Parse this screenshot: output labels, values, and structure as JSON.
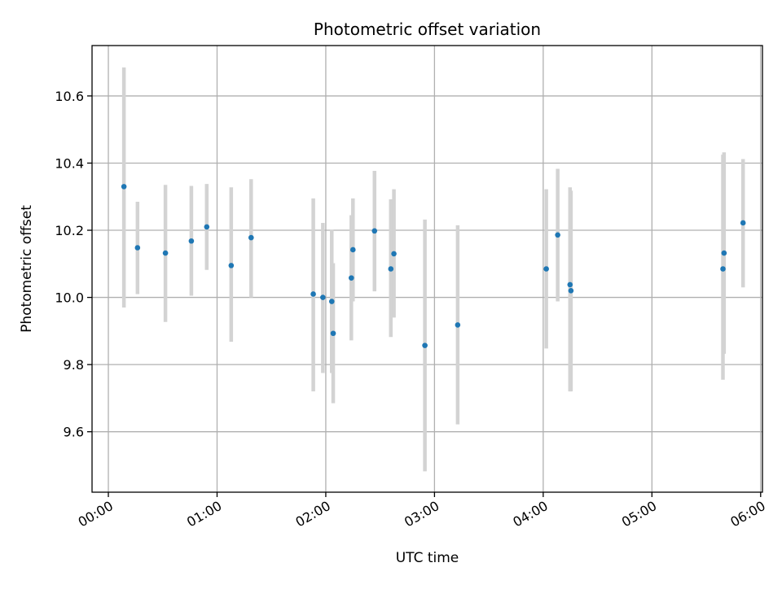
{
  "chart_data": {
    "type": "scatter",
    "title": "Photometric offset variation",
    "xlabel": "UTC time",
    "ylabel": "Photometric offset",
    "x_unit": "minutes (UTC)",
    "xlim": [
      -9,
      361
    ],
    "ylim": [
      9.42,
      10.75
    ],
    "x_ticks": [
      {
        "value": 0,
        "label": "00:00"
      },
      {
        "value": 60,
        "label": "01:00"
      },
      {
        "value": 120,
        "label": "02:00"
      },
      {
        "value": 180,
        "label": "03:00"
      },
      {
        "value": 240,
        "label": "04:00"
      },
      {
        "value": 300,
        "label": "05:00"
      },
      {
        "value": 360,
        "label": "06:00"
      }
    ],
    "y_ticks": [
      {
        "value": 9.6,
        "label": "9.6"
      },
      {
        "value": 9.8,
        "label": "9.8"
      },
      {
        "value": 10.0,
        "label": "10.0"
      },
      {
        "value": 10.2,
        "label": "10.2"
      },
      {
        "value": 10.4,
        "label": "10.4"
      },
      {
        "value": 10.6,
        "label": "10.6"
      }
    ],
    "grid": true,
    "point_color": "#1f77b4",
    "errorbar_color": "#d3d3d3",
    "points": [
      {
        "x": 8.6,
        "y": 10.33,
        "low": 9.97,
        "high": 10.685
      },
      {
        "x": 16.1,
        "y": 10.148,
        "low": 10.01,
        "high": 10.285
      },
      {
        "x": 31.5,
        "y": 10.132,
        "low": 9.927,
        "high": 10.335
      },
      {
        "x": 45.8,
        "y": 10.168,
        "low": 10.005,
        "high": 10.332
      },
      {
        "x": 54.3,
        "y": 10.21,
        "low": 10.082,
        "high": 10.338
      },
      {
        "x": 67.8,
        "y": 10.095,
        "low": 9.868,
        "high": 10.328
      },
      {
        "x": 78.8,
        "y": 10.178,
        "low": 10.0,
        "high": 10.352
      },
      {
        "x": 113.1,
        "y": 10.01,
        "low": 9.72,
        "high": 10.295
      },
      {
        "x": 118.4,
        "y": 10.0,
        "low": 9.775,
        "high": 10.222
      },
      {
        "x": 123.3,
        "y": 9.988,
        "low": 9.775,
        "high": 10.202
      },
      {
        "x": 124.1,
        "y": 9.893,
        "low": 9.685,
        "high": 10.102
      },
      {
        "x": 134.1,
        "y": 10.058,
        "low": 9.872,
        "high": 10.245
      },
      {
        "x": 135.0,
        "y": 10.142,
        "low": 9.988,
        "high": 10.295
      },
      {
        "x": 146.9,
        "y": 10.198,
        "low": 10.018,
        "high": 10.377
      },
      {
        "x": 155.9,
        "y": 10.085,
        "low": 9.882,
        "high": 10.292
      },
      {
        "x": 157.6,
        "y": 10.13,
        "low": 9.94,
        "high": 10.322
      },
      {
        "x": 174.7,
        "y": 9.857,
        "low": 9.482,
        "high": 10.232
      },
      {
        "x": 192.8,
        "y": 9.918,
        "low": 9.622,
        "high": 10.215
      },
      {
        "x": 241.7,
        "y": 10.085,
        "low": 9.848,
        "high": 10.322
      },
      {
        "x": 248.0,
        "y": 10.186,
        "low": 9.988,
        "high": 10.383
      },
      {
        "x": 254.8,
        "y": 10.038,
        "low": 9.72,
        "high": 10.328
      },
      {
        "x": 255.3,
        "y": 10.02,
        "low": 9.72,
        "high": 10.318
      },
      {
        "x": 339.2,
        "y": 10.085,
        "low": 9.755,
        "high": 10.425
      },
      {
        "x": 339.8,
        "y": 10.132,
        "low": 9.832,
        "high": 10.432
      },
      {
        "x": 350.3,
        "y": 10.222,
        "low": 10.03,
        "high": 10.412
      }
    ]
  }
}
